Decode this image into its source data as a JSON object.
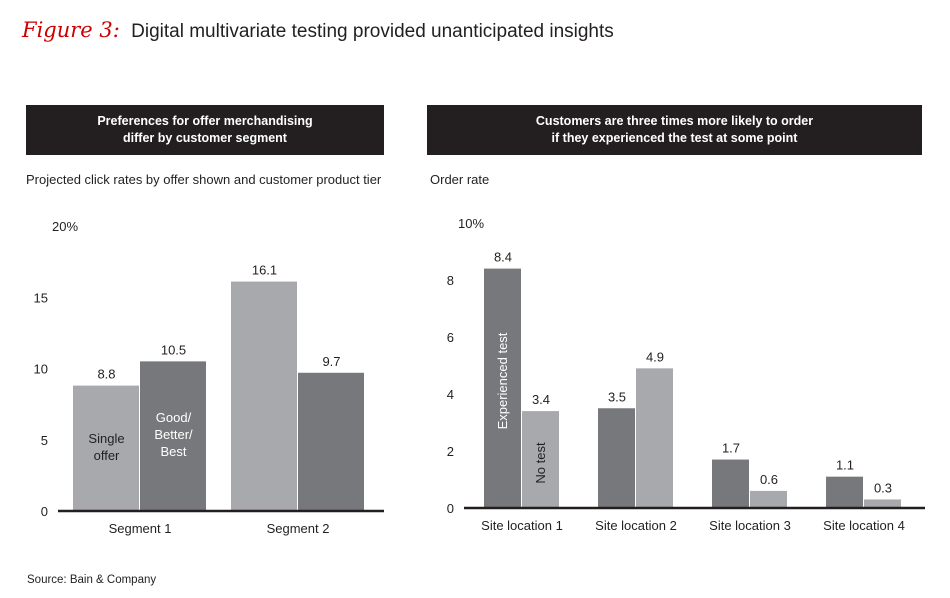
{
  "figure": {
    "label": "Figure 3:",
    "title": "Digital multivariate testing provided unanticipated insights"
  },
  "left_panel": {
    "header_line1": "Preferences for offer merchandising",
    "header_line2": "differ by customer segment",
    "subtitle": "Projected click rates by offer shown and customer product tier"
  },
  "right_panel": {
    "header_line1": "Customers are three times more likely to order",
    "header_line2": "if they experienced the test at some point",
    "subtitle": "Order rate"
  },
  "source": "Source: Bain & Company",
  "colors": {
    "light_gray": "#a7a9ac",
    "dark_gray": "#77787b",
    "accent_red": "#cc0000",
    "header_bg": "#231f20"
  },
  "chart_data": [
    {
      "type": "bar",
      "title": "Projected click rates by offer shown and customer product tier",
      "categories": [
        "Segment 1",
        "Segment 2"
      ],
      "series": [
        {
          "name": "Single offer",
          "label_lines": [
            "Single",
            "offer"
          ],
          "color": "#a7a9ac",
          "values": [
            8.8,
            16.1
          ]
        },
        {
          "name": "Good/Better/Best",
          "label_lines": [
            "Good/",
            "Better/",
            "Best"
          ],
          "color": "#77787b",
          "values": [
            10.5,
            9.7
          ]
        }
      ],
      "data_labels": [
        [
          "8.8",
          "16.1"
        ],
        [
          "10.5",
          "9.7"
        ]
      ],
      "yticks": [
        0,
        5,
        10,
        15,
        20
      ],
      "ytick_labels": [
        "0",
        "5",
        "10",
        "15",
        "20%"
      ],
      "ylim": [
        0,
        20
      ],
      "xlabel": "",
      "ylabel": ""
    },
    {
      "type": "bar",
      "title": "Order rate",
      "categories": [
        "Site location 1",
        "Site location 2",
        "Site location 3",
        "Site location 4"
      ],
      "series": [
        {
          "name": "Experienced test",
          "color": "#77787b",
          "values": [
            8.4,
            3.5,
            1.7,
            1.1
          ]
        },
        {
          "name": "No test",
          "color": "#a7a9ac",
          "values": [
            3.4,
            4.9,
            0.6,
            0.3
          ]
        }
      ],
      "data_labels": [
        [
          "8.4",
          "3.5",
          "1.7",
          "1.1"
        ],
        [
          "3.4",
          "4.9",
          "0.6",
          "0.3"
        ]
      ],
      "yticks": [
        0,
        2,
        4,
        6,
        8,
        10
      ],
      "ytick_labels": [
        "0",
        "2",
        "4",
        "6",
        "8",
        "10%"
      ],
      "ylim": [
        0,
        10
      ],
      "xlabel": "",
      "ylabel": ""
    }
  ]
}
